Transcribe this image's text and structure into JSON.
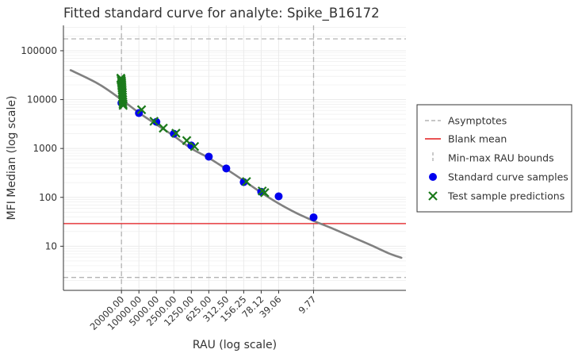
{
  "chart_data": {
    "type": "scatter",
    "title": "Fitted standard curve for analyte: Spike_B16172",
    "xlabel": "RAU (log scale)",
    "ylabel": "MFI  Median (log scale)",
    "x_scale": "log",
    "y_scale": "log",
    "x_reversed": true,
    "xlim": [
      0.25,
      200000
    ],
    "ylim": [
      1.25,
      330000
    ],
    "grid": true,
    "legend_position": "right",
    "x_ticks": [
      {
        "value": 20000,
        "label": "20000.00"
      },
      {
        "value": 10000,
        "label": "10000.00"
      },
      {
        "value": 5000,
        "label": "5000.00"
      },
      {
        "value": 2500,
        "label": "2500.00"
      },
      {
        "value": 1250,
        "label": "1250.00"
      },
      {
        "value": 625,
        "label": "625.00"
      },
      {
        "value": 312.5,
        "label": "312.50"
      },
      {
        "value": 156.25,
        "label": "156.25"
      },
      {
        "value": 78.12,
        "label": "78.12"
      },
      {
        "value": 39.06,
        "label": "39.06"
      },
      {
        "value": 9.77,
        "label": "9.77"
      }
    ],
    "y_ticks": [
      {
        "value": 10,
        "label": "10"
      },
      {
        "value": 100,
        "label": "100"
      },
      {
        "value": 1000,
        "label": "1000"
      },
      {
        "value": 10000,
        "label": "10000"
      },
      {
        "value": 100000,
        "label": "100000"
      }
    ],
    "asymptotes": [
      2.3,
      175000
    ],
    "blank_mean": 29,
    "rau_bounds": [
      9.77,
      20000
    ],
    "fitted_curve": {
      "name": "fit",
      "points": [
        [
          150000,
          40000
        ],
        [
          50000,
          21000
        ],
        [
          20000,
          10000
        ],
        [
          10000,
          5400
        ],
        [
          5000,
          3100
        ],
        [
          2500,
          1800
        ],
        [
          1250,
          1000
        ],
        [
          625,
          640
        ],
        [
          312.5,
          380
        ],
        [
          156.25,
          220
        ],
        [
          78.12,
          125
        ],
        [
          39.06,
          75
        ],
        [
          19.5,
          48
        ],
        [
          9.77,
          33
        ],
        [
          5,
          24
        ],
        [
          2,
          15
        ],
        [
          1,
          10.5
        ],
        [
          0.5,
          7.2
        ],
        [
          0.3,
          5.8
        ]
      ]
    },
    "standard_samples": [
      {
        "x": 20000,
        "y": 8500
      },
      {
        "x": 10000,
        "y": 5300
      },
      {
        "x": 5000,
        "y": 3500
      },
      {
        "x": 2500,
        "y": 2000
      },
      {
        "x": 1250,
        "y": 1150
      },
      {
        "x": 625,
        "y": 680
      },
      {
        "x": 312.5,
        "y": 390
      },
      {
        "x": 156.25,
        "y": 205
      },
      {
        "x": 78.12,
        "y": 130
      },
      {
        "x": 39.06,
        "y": 105
      },
      {
        "x": 9.77,
        "y": 39
      }
    ],
    "test_predictions": [
      {
        "x": 20500,
        "y": 27500
      },
      {
        "x": 20300,
        "y": 26000
      },
      {
        "x": 20100,
        "y": 24500
      },
      {
        "x": 19900,
        "y": 23000
      },
      {
        "x": 19800,
        "y": 21500
      },
      {
        "x": 19700,
        "y": 20000
      },
      {
        "x": 19600,
        "y": 18500
      },
      {
        "x": 19500,
        "y": 17000
      },
      {
        "x": 19400,
        "y": 15500
      },
      {
        "x": 19300,
        "y": 14000
      },
      {
        "x": 19200,
        "y": 12500
      },
      {
        "x": 19100,
        "y": 11200
      },
      {
        "x": 19000,
        "y": 10000
      },
      {
        "x": 18900,
        "y": 9000
      },
      {
        "x": 18800,
        "y": 8200
      },
      {
        "x": 18700,
        "y": 7600
      },
      {
        "x": 9000,
        "y": 6200
      },
      {
        "x": 5500,
        "y": 3600
      },
      {
        "x": 3800,
        "y": 2600
      },
      {
        "x": 2300,
        "y": 2050
      },
      {
        "x": 1500,
        "y": 1450
      },
      {
        "x": 1100,
        "y": 1100
      },
      {
        "x": 140,
        "y": 210
      },
      {
        "x": 75,
        "y": 135
      },
      {
        "x": 68,
        "y": 125
      }
    ],
    "legend": {
      "entries": [
        "Asymptotes",
        "Blank mean",
        "Min-max RAU bounds",
        "Standard curve samples",
        "Test sample predictions"
      ]
    }
  },
  "colors": {
    "asymptote": "#b3b3b3",
    "blank": "#e41a1c",
    "bounds": "#b3b3b3",
    "curve": "#808080",
    "standard": "#0000ee",
    "prediction": "#1b7a1b",
    "grid": "#ebebeb"
  }
}
